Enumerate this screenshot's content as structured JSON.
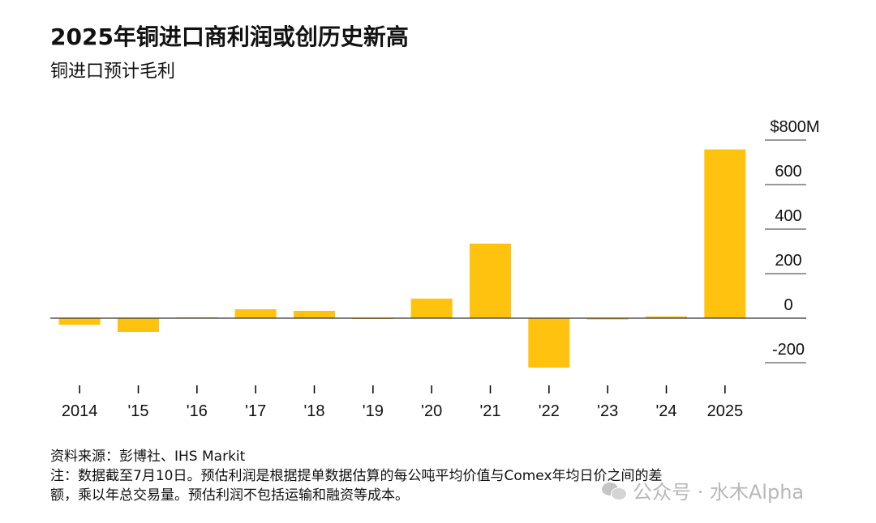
{
  "title": "2025年铜进口商利润或创历史新高",
  "subtitle": "铜进口预计毛利",
  "chart_data": {
    "type": "bar",
    "categories": [
      "2014",
      "'15",
      "'16",
      "'17",
      "'18",
      "'19",
      "'20",
      "'21",
      "'22",
      "'23",
      "'24",
      "2025"
    ],
    "values": [
      -30,
      -62,
      4,
      40,
      33,
      2,
      88,
      335,
      -222,
      -6,
      8,
      758
    ],
    "ylim": [
      -200,
      800
    ],
    "yticks": [
      -200,
      0,
      200,
      400,
      600,
      800
    ],
    "ytick_labels": [
      "-200",
      "0",
      "200",
      "400",
      "600",
      "$800M"
    ],
    "bar_color": "#FFC20E",
    "axis_color": "#333333",
    "tick_color": "#000000"
  },
  "source": "资料来源：彭博社、IHS Markit",
  "note_line1": "注：数据截至7月10日。预估利润是根据提单数据估算的每公吨平均价值与Comex年均日价之间的差",
  "note_line2": "额，乘以年总交易量。预估利润不包括运输和融资等成本。",
  "watermark": "公众号 · 水木Alpha"
}
